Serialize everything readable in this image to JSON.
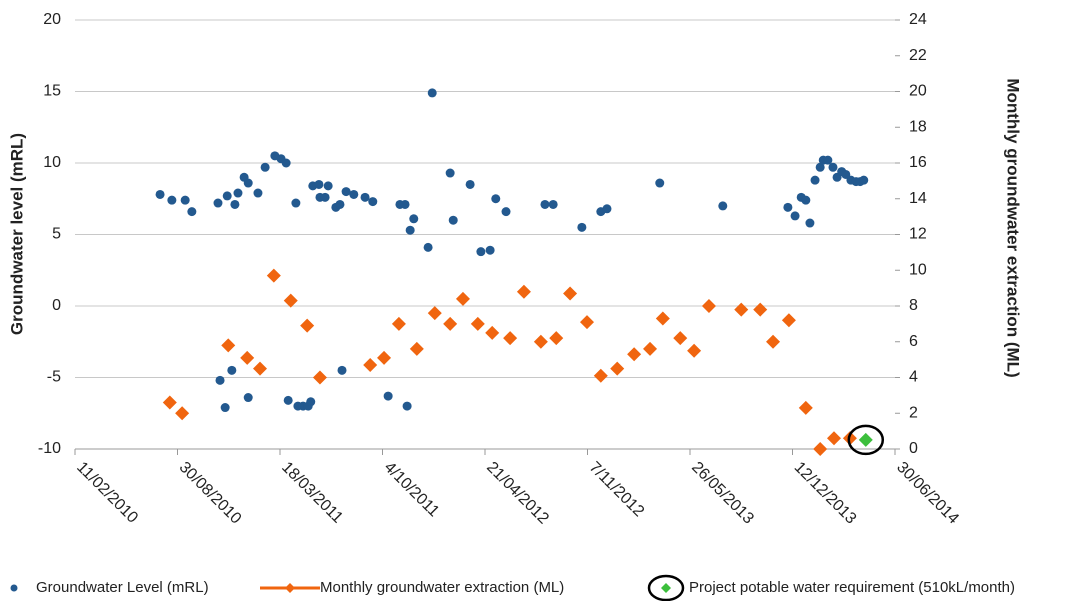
{
  "chart_data": {
    "type": "scatter",
    "y_title": "Groundwater level (mRL)",
    "y2_title": "Monthly groundwater extraction (ML)",
    "xlim": [
      40220,
      41820
    ],
    "xticks": [
      {
        "value": 40220,
        "label": "11/02/2010"
      },
      {
        "value": 40420,
        "label": "30/08/2010"
      },
      {
        "value": 40620,
        "label": "18/03/2011"
      },
      {
        "value": 40820,
        "label": "4/10/2011"
      },
      {
        "value": 41020,
        "label": "21/04/2012"
      },
      {
        "value": 41220,
        "label": "7/11/2012"
      },
      {
        "value": 41420,
        "label": "26/05/2013"
      },
      {
        "value": 41620,
        "label": "12/12/2013"
      },
      {
        "value": 41820,
        "label": "30/06/2014"
      }
    ],
    "ylim": [
      -10,
      20
    ],
    "yticks": [
      -10,
      -5,
      0,
      5,
      10,
      15,
      20
    ],
    "y2lim": [
      0,
      24
    ],
    "y2ticks": [
      0,
      2,
      4,
      6,
      8,
      10,
      12,
      14,
      16,
      18,
      20,
      22,
      24
    ],
    "grid": true,
    "legend": "bottom",
    "series": [
      {
        "name": "Groundwater Level (mRL)",
        "color": "#23598f",
        "marker": "circle",
        "axis": "y",
        "x": [
          40386,
          40409,
          40435,
          40448,
          40499,
          40503,
          40513,
          40517,
          40526,
          40532,
          40538,
          40550,
          40558,
          40558,
          40577,
          40591,
          40610,
          40622,
          40632,
          40636,
          40651,
          40655,
          40665,
          40675,
          40680,
          40684,
          40696,
          40698,
          40708,
          40714,
          40729,
          40737,
          40741,
          40749,
          40764,
          40786,
          40801,
          40831,
          40854,
          40864,
          40868,
          40874,
          40881,
          40909,
          40917,
          40952,
          40958,
          40991,
          41012,
          41030,
          41041,
          41061,
          41137,
          41153,
          41209,
          41246,
          41258,
          41361,
          41484,
          41611,
          41625,
          41637,
          41646,
          41654,
          41664,
          41674,
          41680,
          41689,
          41699,
          41707,
          41716,
          41724,
          41734,
          41744,
          41752,
          41759
        ],
        "values": [
          7.8,
          7.4,
          7.4,
          6.6,
          7.2,
          -5.2,
          -7.1,
          7.7,
          -4.5,
          7.1,
          7.9,
          9.0,
          8.6,
          -6.4,
          7.9,
          9.7,
          10.5,
          10.3,
          10.0,
          -6.6,
          7.2,
          -7.0,
          -7.0,
          -7.0,
          -6.7,
          8.4,
          8.5,
          7.6,
          7.6,
          8.4,
          6.9,
          7.1,
          -4.5,
          8.0,
          7.8,
          7.6,
          7.3,
          -6.3,
          7.1,
          7.1,
          -7.0,
          5.3,
          6.1,
          4.1,
          14.9,
          9.3,
          6.0,
          8.5,
          3.8,
          3.9,
          7.5,
          6.6,
          7.1,
          7.1,
          5.5,
          6.6,
          6.8,
          8.6,
          7.0,
          6.9,
          6.3,
          7.6,
          7.4,
          5.8,
          8.8,
          9.7,
          10.2,
          10.2,
          9.7,
          9.0,
          9.4,
          9.2,
          8.8,
          8.7,
          8.7,
          8.8
        ]
      },
      {
        "name": "Monthly groundwater extraction (ML)",
        "color": "#f0650f",
        "marker": "diamond",
        "axis": "y2",
        "x": [
          40405,
          40429,
          40519,
          40556,
          40581,
          40608,
          40641,
          40673,
          40698,
          40796,
          40823,
          40852,
          40887,
          40922,
          40952,
          40977,
          41006,
          41034,
          41069,
          41096,
          41129,
          41159,
          41186,
          41219,
          41246,
          41278,
          41311,
          41342,
          41367,
          41401,
          41428,
          41457,
          41520,
          41557,
          41582,
          41613,
          41646,
          41674,
          41701,
          41732
        ],
        "values": [
          2.6,
          2.0,
          5.8,
          5.1,
          4.5,
          9.7,
          8.3,
          6.9,
          4.0,
          4.7,
          5.1,
          7.0,
          5.6,
          7.6,
          7.0,
          8.4,
          7.0,
          6.5,
          6.2,
          8.8,
          6.0,
          6.2,
          8.7,
          7.1,
          4.1,
          4.5,
          5.3,
          5.6,
          7.3,
          6.2,
          5.5,
          8.0,
          7.8,
          7.8,
          6.0,
          7.2,
          2.3,
          0,
          0.6,
          0.6
        ]
      },
      {
        "name": "Project potable water requirement (510kL/month)",
        "color": "#3cbf3c",
        "marker": "ringed-diamond",
        "axis": "y2",
        "x": [
          41763
        ],
        "values": [
          0.51
        ]
      }
    ]
  }
}
